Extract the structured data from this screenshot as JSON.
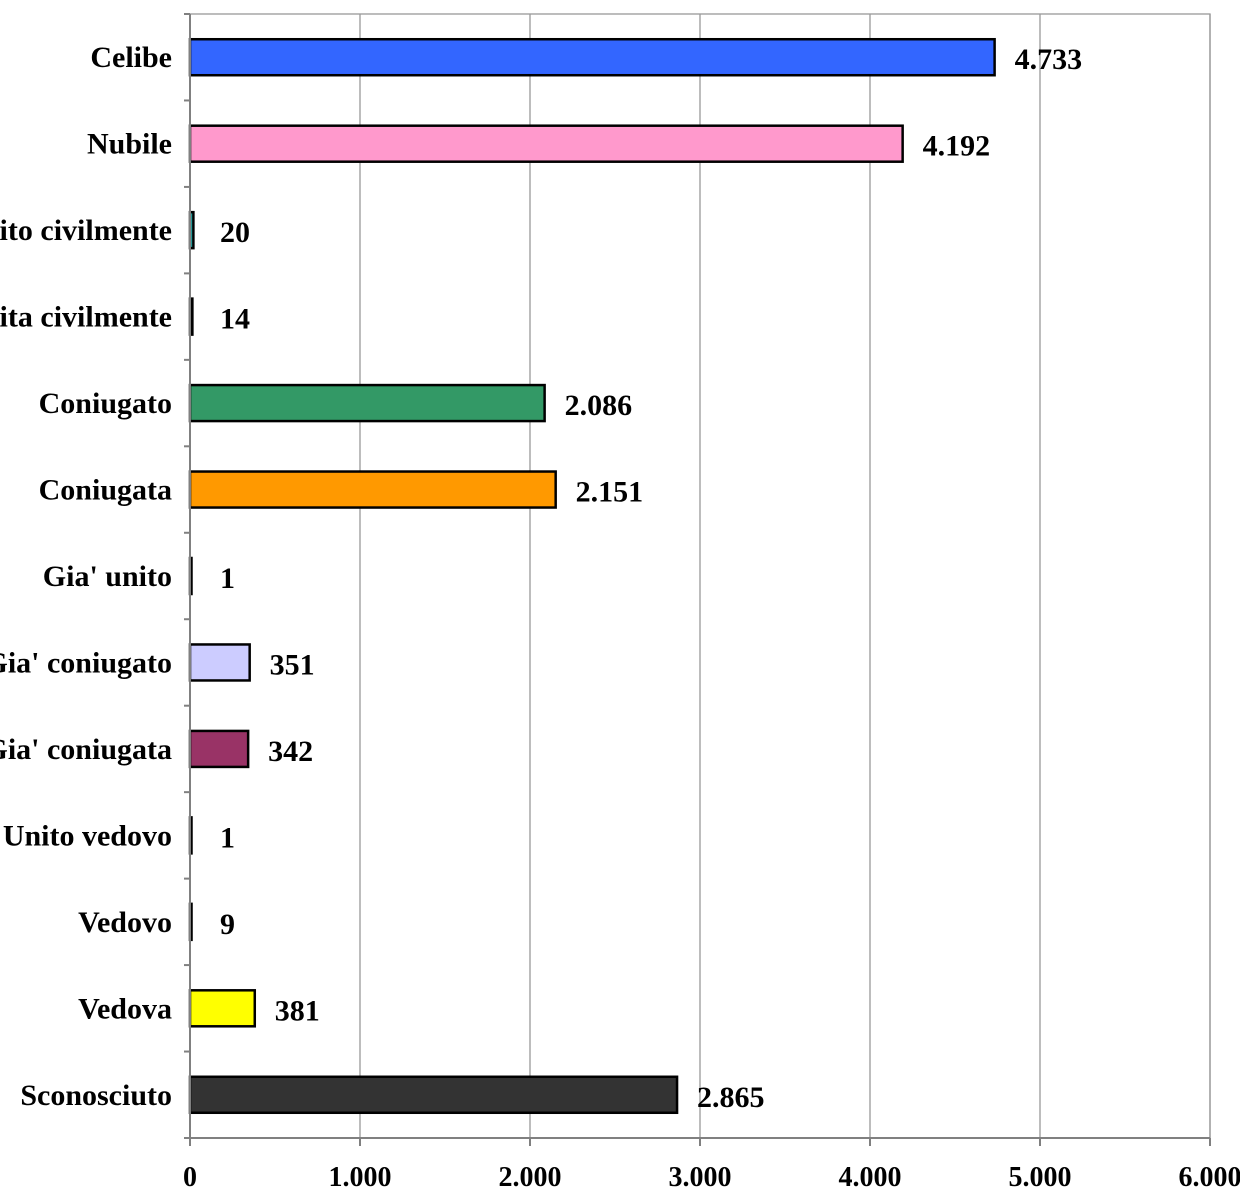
{
  "chart_data": {
    "type": "bar",
    "orientation": "horizontal",
    "title": "",
    "xlabel": "",
    "ylabel": "",
    "xlim": [
      0,
      6000
    ],
    "grid": true,
    "legend": "none",
    "x_ticks": [
      0,
      1000,
      2000,
      3000,
      4000,
      5000,
      6000
    ],
    "x_tick_labels": [
      "0",
      "1.000",
      "2.000",
      "3.000",
      "4.000",
      "5.000",
      "6.000"
    ],
    "categories": [
      "Celibe",
      "Nubile",
      "Unito civilmente",
      "Unita civilmente",
      "Coniugato",
      "Coniugata",
      "Gia' unito",
      "Gia' coniugato",
      "Gia' coniugata",
      "Unito vedovo",
      "Vedovo",
      "Vedova",
      "Sconosciuto"
    ],
    "values": [
      4733,
      4192,
      20,
      14,
      2086,
      2151,
      1,
      351,
      342,
      1,
      9,
      381,
      2865
    ],
    "value_labels": [
      "4.733",
      "4.192",
      "20",
      "14",
      "2.086",
      "2.151",
      "1",
      "351",
      "342",
      "1",
      "9",
      "381",
      "2.865"
    ],
    "colors": [
      "#3366ff",
      "#ff99cc",
      "#33cccc",
      "#000080",
      "#339966",
      "#ff9900",
      "#000000",
      "#ccccff",
      "#993366",
      "#000000",
      "#9999ff",
      "#ffff00",
      "#333333"
    ]
  }
}
